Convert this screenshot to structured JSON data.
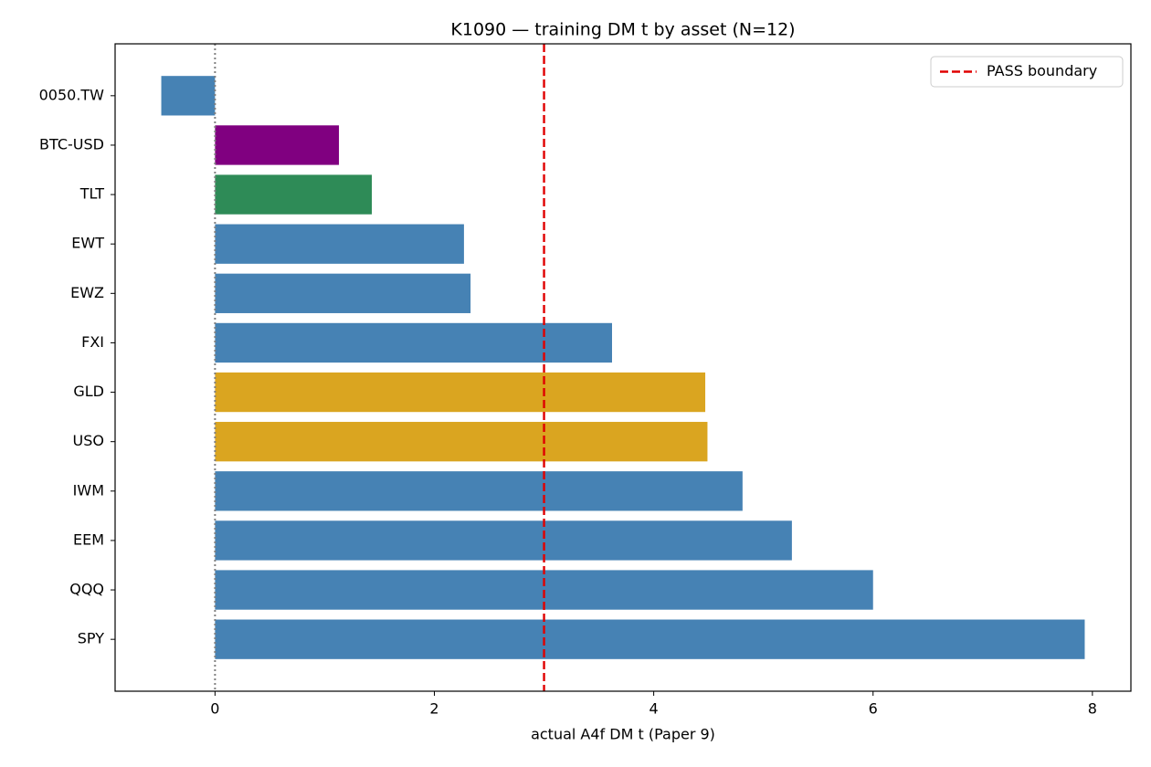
{
  "chart_data": {
    "type": "barh",
    "title": "K1090 — training DM t by asset (N=12)",
    "x_label": "actual A4f DM t (Paper 9)",
    "categories": [
      "0050.TW",
      "BTC-USD",
      "TLT",
      "EWT",
      "EWZ",
      "FXI",
      "GLD",
      "USO",
      "IWM",
      "EEM",
      "QQQ",
      "SPY"
    ],
    "values": [
      -0.49,
      1.13,
      1.43,
      2.27,
      2.33,
      3.62,
      4.47,
      4.49,
      4.81,
      5.26,
      6.0,
      7.93
    ],
    "colors": [
      "#4682b4",
      "#800080",
      "#2e8b57",
      "#4682b4",
      "#4682b4",
      "#4682b4",
      "#daa520",
      "#daa520",
      "#4682b4",
      "#4682b4",
      "#4682b4",
      "#4682b4"
    ],
    "xlim": [
      -0.911,
      8.351
    ],
    "xticks": [
      0,
      2,
      4,
      6,
      8
    ],
    "reference_lines": [
      {
        "value": 3,
        "label": "PASS boundary",
        "color": "#e00000",
        "style": "dashed"
      },
      {
        "value": 0,
        "color": "#808080",
        "style": "dotted"
      }
    ],
    "legend": "upper right"
  }
}
